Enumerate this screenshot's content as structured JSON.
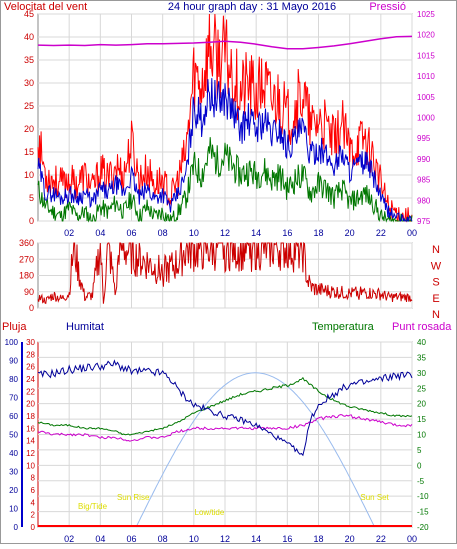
{
  "header": {
    "left_label": "Velocitat del vent",
    "title": "24 hour graph day : 31 Mayo 2016",
    "right_label": "Pressió"
  },
  "colors": {
    "gust": "#ff0000",
    "wind_avg": "#0000cc",
    "wind_low": "#007700",
    "pressure": "#cc00cc",
    "direction": "#cc0000",
    "rain": "#ff0000",
    "humidity": "#000099",
    "temperature": "#007700",
    "dewpoint": "#cc00cc",
    "solar": "#99bbee",
    "events": "#dddd00",
    "left_axis": "#cc0000",
    "right_axis": "#cc00cc",
    "grid": "#d8d8d8"
  },
  "chart_data": [
    {
      "type": "line",
      "name": "wind-pressure",
      "ylabel_left": "Velocitat del vent",
      "ylabel_right": "Pressió",
      "y_left_range": [
        0,
        45
      ],
      "y_left_ticks": [
        "0",
        "5",
        "10",
        "15",
        "20",
        "25",
        "30",
        "35",
        "40",
        "45"
      ],
      "y_right_range": [
        975,
        1025
      ],
      "y_right_ticks": [
        "975",
        "980",
        "985",
        "990",
        "995",
        "1000",
        "1005",
        "1010",
        "1015",
        "1020",
        "1025"
      ],
      "x_range": [
        0,
        24
      ],
      "x_ticks": [
        "02",
        "04",
        "06",
        "08",
        "10",
        "12",
        "14",
        "16",
        "18",
        "20",
        "22",
        "00"
      ],
      "gust": {
        "x": [
          0,
          0.5,
          1,
          1.5,
          2,
          2.5,
          3,
          3.5,
          4,
          4.5,
          5,
          5.5,
          6,
          6.5,
          7,
          7.5,
          8,
          8.5,
          9,
          9.5,
          10,
          10.5,
          11,
          11.5,
          12,
          12.5,
          13,
          13.5,
          14,
          14.5,
          15,
          15.5,
          16,
          16.5,
          17,
          17.5,
          18,
          18.5,
          19,
          19.5,
          20,
          20.5,
          21,
          21.5,
          22,
          22.5,
          23,
          23.5,
          24
        ],
        "y": [
          18,
          10,
          9,
          8,
          9,
          8,
          10,
          7,
          11,
          9,
          12,
          10,
          17,
          9,
          11,
          8,
          9,
          5,
          9,
          15,
          32,
          30,
          38,
          35,
          36,
          32,
          28,
          30,
          27,
          30,
          26,
          27,
          22,
          25,
          28,
          20,
          22,
          20,
          17,
          21,
          15,
          17,
          18,
          14,
          8,
          3,
          2,
          1,
          1
        ]
      },
      "wind_avg": {
        "x": [
          0,
          0.5,
          1,
          1.5,
          2,
          2.5,
          3,
          3.5,
          4,
          4.5,
          5,
          5.5,
          6,
          6.5,
          7,
          7.5,
          8,
          8.5,
          9,
          9.5,
          10,
          10.5,
          11,
          11.5,
          12,
          12.5,
          13,
          13.5,
          14,
          14.5,
          15,
          15.5,
          16,
          16.5,
          17,
          17.5,
          18,
          18.5,
          19,
          19.5,
          20,
          20.5,
          21,
          21.5,
          22,
          22.5,
          23,
          23.5,
          24
        ],
        "y": [
          12,
          6,
          6,
          5,
          6,
          5,
          6,
          4,
          7,
          6,
          8,
          6,
          10,
          5,
          7,
          5,
          6,
          3,
          6,
          10,
          25,
          22,
          28,
          26,
          27,
          24,
          20,
          22,
          20,
          22,
          19,
          20,
          16,
          18,
          20,
          14,
          16,
          14,
          12,
          15,
          11,
          12,
          13,
          10,
          5,
          2,
          1,
          0,
          0
        ]
      },
      "wind_low": {
        "x": [
          0,
          0.5,
          1,
          1.5,
          2,
          2.5,
          3,
          3.5,
          4,
          4.5,
          5,
          5.5,
          6,
          6.5,
          7,
          7.5,
          8,
          8.5,
          9,
          9.5,
          10,
          10.5,
          11,
          11.5,
          12,
          12.5,
          13,
          13.5,
          14,
          14.5,
          15,
          15.5,
          16,
          16.5,
          17,
          17.5,
          18,
          18.5,
          19,
          19.5,
          20,
          20.5,
          21,
          21.5,
          22,
          22.5,
          23,
          23.5,
          24
        ],
        "y": [
          7,
          3,
          2,
          1,
          3,
          1,
          2,
          0,
          3,
          2,
          4,
          2,
          5,
          1,
          3,
          1,
          2,
          0,
          2,
          5,
          12,
          10,
          15,
          13,
          14,
          12,
          10,
          11,
          10,
          11,
          9,
          10,
          7,
          9,
          10,
          6,
          8,
          7,
          5,
          7,
          4,
          5,
          6,
          4,
          1,
          0,
          0,
          0,
          0
        ]
      },
      "pressure": {
        "x": [
          0,
          1,
          2,
          3,
          4,
          5,
          6,
          7,
          8,
          9,
          10,
          11,
          12,
          13,
          14,
          15,
          16,
          17,
          18,
          19,
          20,
          21,
          22,
          23,
          24
        ],
        "y": [
          1017.5,
          1017.4,
          1017.5,
          1017.4,
          1017.6,
          1017.5,
          1017.6,
          1017.8,
          1017.8,
          1017.9,
          1018.0,
          1018.2,
          1018.4,
          1018.2,
          1017.7,
          1017.1,
          1016.6,
          1016.6,
          1016.9,
          1017.3,
          1017.8,
          1018.4,
          1019.0,
          1019.5,
          1019.6
        ]
      }
    },
    {
      "type": "line",
      "name": "wind-direction",
      "y_ticks": [
        "0",
        "90",
        "180",
        "270",
        "360"
      ],
      "y_range": [
        0,
        360
      ],
      "compass_labels": [
        "N",
        "W",
        "S",
        "E",
        "N"
      ],
      "x_range": [
        0,
        24
      ],
      "direction": {
        "x": [
          0,
          0.5,
          1,
          1.5,
          2,
          2.3,
          2.6,
          3,
          3.5,
          4,
          4.2,
          4.5,
          5,
          5.2,
          5.5,
          6,
          6.5,
          7,
          7.5,
          8,
          8.5,
          9,
          9.5,
          10,
          11,
          12,
          13,
          14,
          15,
          16,
          16.5,
          17,
          17.3,
          17.6,
          18,
          19,
          20,
          21,
          22,
          22.5,
          23,
          24
        ],
        "y": [
          60,
          40,
          70,
          50,
          80,
          350,
          200,
          60,
          70,
          350,
          30,
          350,
          70,
          350,
          330,
          300,
          270,
          250,
          220,
          200,
          220,
          250,
          330,
          320,
          330,
          340,
          330,
          340,
          335,
          340,
          320,
          320,
          150,
          110,
          100,
          90,
          80,
          85,
          75,
          60,
          60,
          60
        ]
      }
    },
    {
      "type": "line",
      "name": "rain-humidity-temperature",
      "ylabel_rain": "Pluja",
      "ylabel_humidity": "Humitat",
      "ylabel_temperature": "Temperatura",
      "ylabel_dewpoint": "Punt rosada",
      "y_rain_ticks": [
        "0",
        "2",
        "4",
        "6",
        "8",
        "10",
        "12",
        "14",
        "16",
        "18",
        "20",
        "22",
        "24",
        "26",
        "28",
        "30"
      ],
      "y_humidity_ticks": [
        "0",
        "10",
        "20",
        "30",
        "40",
        "50",
        "60",
        "70",
        "80",
        "90",
        "100"
      ],
      "y_temp_ticks": [
        "-20",
        "-15",
        "-10",
        "-5",
        "0",
        "5",
        "10",
        "15",
        "20",
        "25",
        "30",
        "35",
        "40"
      ],
      "y_temp_range": [
        -20,
        40
      ],
      "x_range": [
        0,
        24
      ],
      "x_ticks": [
        "02",
        "04",
        "06",
        "08",
        "10",
        "12",
        "14",
        "16",
        "18",
        "20",
        "22",
        "00"
      ],
      "humidity": {
        "x": [
          0,
          1,
          2,
          3,
          4,
          5,
          5.5,
          6,
          7,
          8,
          8.5,
          9,
          10,
          11,
          12,
          13,
          14,
          15,
          16,
          16.5,
          17,
          17.3,
          17.6,
          18,
          19,
          20,
          21,
          22,
          23,
          24
        ],
        "y": [
          82,
          83,
          85,
          86,
          87,
          88,
          86,
          84,
          84,
          83,
          80,
          74,
          66,
          63,
          60,
          58,
          55,
          50,
          45,
          42,
          38,
          52,
          60,
          66,
          72,
          77,
          78,
          80,
          82,
          82
        ]
      },
      "temperature": {
        "x": [
          0,
          1,
          2,
          3,
          4,
          5,
          5.5,
          6,
          7,
          8,
          9,
          10,
          11,
          12,
          13,
          14,
          15,
          16,
          17,
          17.5,
          18,
          19,
          20,
          21,
          22,
          23,
          24
        ],
        "y": [
          14,
          13,
          13,
          12,
          12,
          11,
          10,
          10,
          11,
          12,
          14,
          17,
          19,
          21,
          23,
          24,
          25,
          26,
          28,
          26,
          24,
          21,
          19,
          18,
          17,
          16,
          16
        ]
      },
      "dewpoint": {
        "x": [
          0,
          1,
          2,
          3,
          4,
          5,
          6,
          7,
          8,
          9,
          10,
          11,
          12,
          13,
          14,
          15,
          16,
          17,
          18,
          19,
          20,
          21,
          22,
          23,
          24
        ],
        "y": [
          11,
          10,
          10,
          10,
          9,
          9,
          8,
          9,
          9,
          11,
          12,
          12,
          12,
          12,
          12,
          12,
          12,
          13,
          15,
          16,
          16,
          15,
          14,
          13,
          13
        ]
      },
      "rain": {
        "x": [
          0,
          24
        ],
        "y": [
          0,
          0
        ]
      },
      "solar": {
        "sunrise_hour": 6.3,
        "sunset_hour": 21.6,
        "peak_hour": 14,
        "peak_temp_units": 30
      },
      "annotations": {
        "sunrise": "Sun Rise",
        "sunset": "Sun Set",
        "high_tide": "Big/Tide",
        "low_tide": "Low/tide"
      }
    }
  ]
}
